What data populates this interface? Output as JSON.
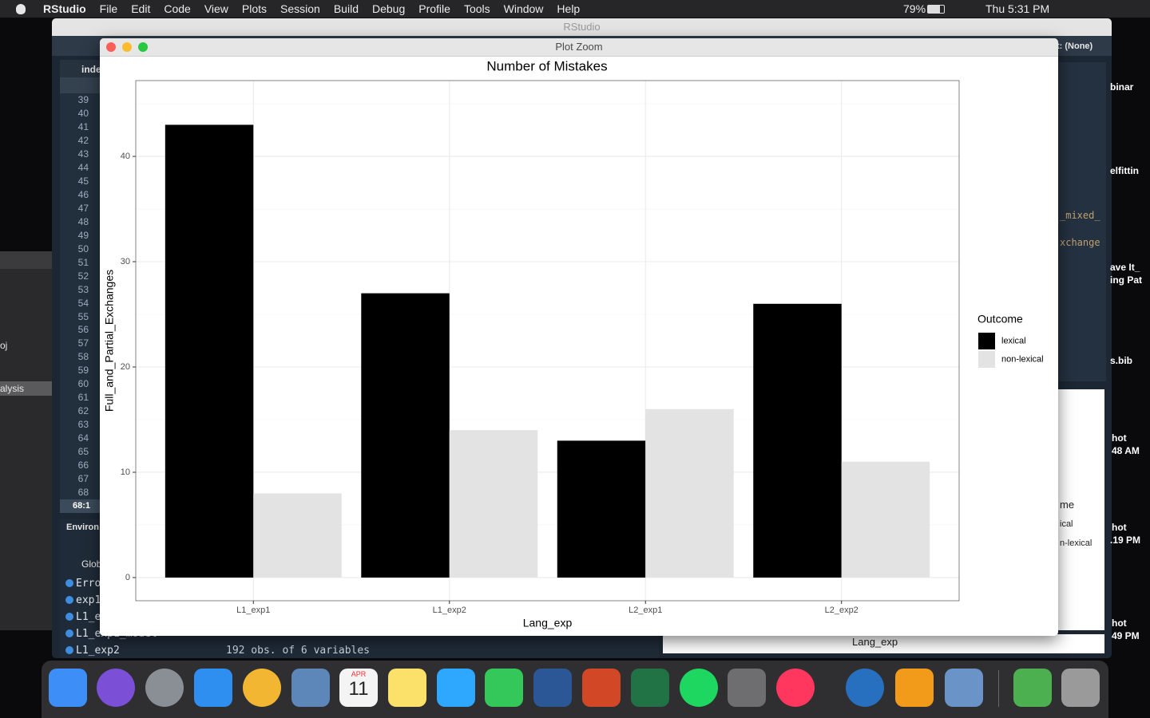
{
  "menu_bar": {
    "app_name": "RStudio",
    "menus": [
      "File",
      "Edit",
      "Code",
      "View",
      "Plots",
      "Session",
      "Build",
      "Debug",
      "Profile",
      "Tools",
      "Window",
      "Help"
    ],
    "battery": "79%",
    "clock": "Thu 5:31 PM"
  },
  "main_window": {
    "title": "RStudio",
    "editor_tab": "inde",
    "line_numbers": [
      39,
      40,
      41,
      42,
      43,
      44,
      45,
      46,
      47,
      48,
      49,
      50,
      51,
      52,
      53,
      54,
      55,
      56,
      57,
      58,
      59,
      60,
      61,
      62,
      63,
      64,
      65,
      66,
      67,
      68
    ],
    "cursor_position": "68:1",
    "environment_tab": "Environ",
    "environment_scope": "Glob",
    "environment_items": [
      "Erro",
      "exp1",
      "L1_e",
      "L1_exp1_model",
      "L1_exp2"
    ],
    "environment_summary": "192 obs. of 6 variables",
    "toolbar_project": "t: (None)",
    "editor_fragments": [
      "_mixed_",
      "xchange"
    ],
    "viewer_fragments": [
      "me",
      "ical",
      "n-lexical",
      "Lang_exp"
    ]
  },
  "plot_window": {
    "title": "Plot Zoom"
  },
  "chart_data": {
    "type": "bar",
    "title": "Number of Mistakes",
    "x_label": "Lang_exp",
    "y_label": "Full_and_Partial_Exchanges",
    "categories": [
      "L1_exp1",
      "L1_exp2",
      "L2_exp1",
      "L2_exp2"
    ],
    "series": [
      {
        "name": "lexical",
        "color": "#000000",
        "values": [
          43,
          27,
          13,
          26
        ]
      },
      {
        "name": "non-lexical",
        "color": "#e3e3e3",
        "values": [
          8,
          14,
          16,
          11
        ]
      }
    ],
    "ylim": [
      -2.2,
      47.2
    ],
    "yticks": [
      0,
      10,
      20,
      30,
      40
    ],
    "grid": true,
    "legend_title": "Outcome",
    "legend": "right"
  },
  "desktop_labels": [
    "binar",
    "elfittin",
    "ave It_",
    "ing Pat",
    "s.bib",
    "hot",
    "48 AM",
    "hot",
    ".19 PM",
    "hot",
    "49 PM"
  ],
  "side_window_labels": [
    "oj",
    "alysis"
  ],
  "dock": {
    "calendar_month": "APR",
    "calendar_day": "11"
  }
}
